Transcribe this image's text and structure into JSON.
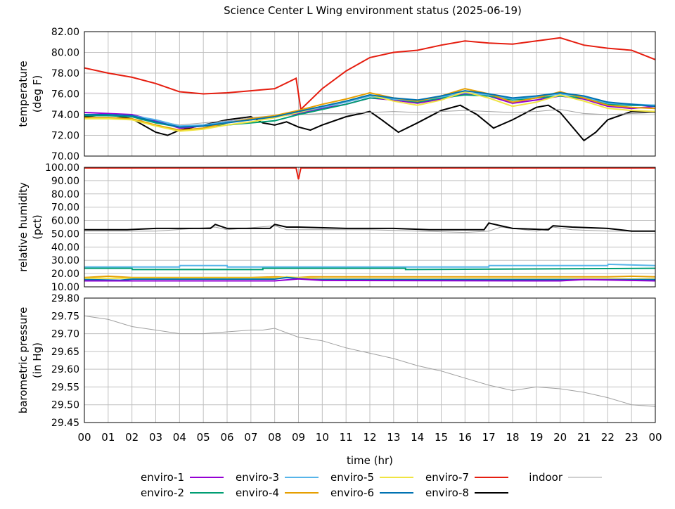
{
  "chart_data": {
    "title": "Science Center L Wing environment status (2025-06-19)",
    "xlabel": "time (hr)",
    "xlim": [
      0,
      24
    ],
    "xticks": [
      "00",
      "01",
      "02",
      "03",
      "04",
      "05",
      "06",
      "07",
      "08",
      "09",
      "10",
      "11",
      "12",
      "13",
      "14",
      "15",
      "16",
      "17",
      "18",
      "19",
      "20",
      "21",
      "22",
      "23",
      "00"
    ],
    "grid": true,
    "legend_placement": "bottom",
    "legend": [
      {
        "name": "enviro-1",
        "color": "#9400d3"
      },
      {
        "name": "enviro-2",
        "color": "#009e73"
      },
      {
        "name": "enviro-3",
        "color": "#56b4e9"
      },
      {
        "name": "enviro-4",
        "color": "#e69f00"
      },
      {
        "name": "enviro-5",
        "color": "#f0e442"
      },
      {
        "name": "enviro-6",
        "color": "#0072b2"
      },
      {
        "name": "enviro-7",
        "color": "#e51e10"
      },
      {
        "name": "enviro-8",
        "color": "#000000"
      },
      {
        "name": "indoor",
        "color": "#a0a0a0"
      }
    ],
    "panels": [
      {
        "type": "line",
        "ylabel": [
          "temperature",
          "(deg F)"
        ],
        "ylim": [
          70,
          82
        ],
        "yticks": [
          70,
          72,
          74,
          76,
          78,
          80,
          82
        ],
        "series": [
          {
            "name": "enviro-7",
            "x": [
              0,
              1,
              2,
              3,
              4,
              5,
              6,
              7,
              8,
              8.9,
              9.1,
              10,
              11,
              12,
              13,
              14,
              15,
              16,
              17,
              18,
              19,
              20,
              21,
              22,
              23,
              24
            ],
            "y": [
              78.5,
              78.0,
              77.6,
              77.0,
              76.2,
              76.0,
              76.1,
              76.3,
              76.5,
              77.5,
              74.5,
              76.5,
              78.2,
              79.5,
              80.0,
              80.2,
              80.7,
              81.1,
              80.9,
              80.8,
              81.1,
              81.4,
              80.7,
              80.4,
              80.2,
              79.3
            ]
          },
          {
            "name": "enviro-8",
            "x": [
              0,
              1,
              2,
              3,
              3.5,
              4,
              5,
              6,
              7,
              7.5,
              8,
              8.5,
              9,
              9.5,
              10,
              11,
              12,
              12.5,
              13.2,
              14,
              15,
              15.8,
              16.5,
              17.2,
              18,
              19,
              19.5,
              20,
              21,
              21.5,
              22,
              23,
              24
            ],
            "y": [
              73.8,
              74.0,
              73.6,
              72.3,
              72.0,
              72.5,
              73.0,
              73.5,
              73.8,
              73.2,
              73.0,
              73.3,
              72.8,
              72.5,
              73.0,
              73.8,
              74.3,
              73.5,
              72.3,
              73.2,
              74.4,
              74.9,
              74.0,
              72.7,
              73.5,
              74.7,
              74.9,
              74.2,
              71.5,
              72.3,
              73.5,
              74.3,
              74.2
            ]
          },
          {
            "name": "indoor",
            "x": [
              0,
              1,
              2,
              3,
              4,
              5,
              6,
              7,
              8,
              9,
              10,
              11,
              12,
              13,
              14,
              15,
              16,
              17,
              18,
              19,
              20,
              21,
              22,
              23,
              24
            ],
            "y": [
              73.6,
              73.6,
              73.5,
              73.4,
              73.0,
              73.2,
              73.4,
              73.7,
              73.9,
              74.0,
              74.1,
              74.1,
              74.2,
              74.3,
              74.2,
              74.3,
              74.4,
              74.3,
              74.2,
              74.3,
              74.5,
              74.1,
              74.0,
              74.1,
              74.2
            ]
          },
          {
            "name": "enviro-1",
            "x": [
              0,
              1,
              2,
              3,
              4,
              5,
              6,
              7,
              8,
              9,
              10,
              11,
              12,
              13,
              14,
              15,
              16,
              17,
              18,
              19,
              20,
              21,
              22,
              23,
              24
            ],
            "y": [
              74.2,
              74.1,
              74.0,
              73.4,
              72.7,
              72.9,
              73.3,
              73.5,
              73.8,
              74.1,
              74.6,
              75.0,
              75.6,
              75.4,
              75.1,
              75.5,
              76.0,
              75.8,
              75.1,
              75.4,
              75.8,
              75.5,
              74.8,
              74.6,
              74.8
            ]
          },
          {
            "name": "enviro-2",
            "x": [
              0,
              1,
              2,
              3,
              4,
              5,
              6,
              7,
              8,
              9,
              10,
              11,
              12,
              13,
              14,
              15,
              16,
              17,
              18,
              19,
              20,
              21,
              22,
              23,
              24
            ],
            "y": [
              73.9,
              73.9,
              73.8,
              73.2,
              72.8,
              72.9,
              73.0,
              73.2,
              73.4,
              74.0,
              74.5,
              75.0,
              75.6,
              75.5,
              75.2,
              75.6,
              75.9,
              75.8,
              75.4,
              75.6,
              75.8,
              75.6,
              75.0,
              74.9,
              74.9
            ]
          },
          {
            "name": "enviro-3",
            "x": [
              0,
              1,
              2,
              3,
              4,
              5,
              6,
              7,
              8,
              9,
              10,
              11,
              12,
              13,
              14,
              15,
              16,
              17,
              18,
              19,
              20,
              21,
              22,
              23,
              24
            ],
            "y": [
              74.0,
              74.0,
              73.9,
              73.5,
              72.9,
              73.0,
              73.3,
              73.5,
              73.8,
              74.2,
              74.7,
              75.2,
              75.8,
              75.5,
              75.3,
              75.7,
              76.1,
              75.9,
              75.5,
              75.7,
              76.0,
              75.7,
              75.1,
              75.0,
              74.9
            ]
          },
          {
            "name": "enviro-4",
            "x": [
              0,
              1,
              2,
              3,
              4,
              5,
              6,
              7,
              8,
              9,
              10,
              11,
              12,
              13,
              14,
              15,
              16,
              17,
              18,
              19,
              20,
              21,
              22,
              23,
              24
            ],
            "y": [
              73.7,
              73.7,
              73.6,
              73.0,
              72.5,
              72.7,
              73.2,
              73.6,
              73.9,
              74.4,
              75.0,
              75.5,
              76.1,
              75.6,
              75.3,
              75.8,
              76.5,
              76.0,
              75.2,
              75.6,
              76.2,
              75.6,
              74.9,
              74.7,
              74.6
            ]
          },
          {
            "name": "enviro-5",
            "x": [
              0,
              1,
              2,
              3,
              4,
              5,
              6,
              7,
              8,
              9,
              10,
              11,
              12,
              13,
              14,
              15,
              16,
              17,
              18,
              19,
              20,
              21,
              22,
              23,
              24
            ],
            "y": [
              73.6,
              73.6,
              73.5,
              72.9,
              72.4,
              72.6,
              73.0,
              73.3,
              73.7,
              74.2,
              74.8,
              75.3,
              75.9,
              75.3,
              74.9,
              75.4,
              76.2,
              75.6,
              74.8,
              75.2,
              75.9,
              75.3,
              74.6,
              74.4,
              74.3
            ]
          },
          {
            "name": "enviro-6",
            "x": [
              0,
              1,
              2,
              3,
              4,
              5,
              6,
              7,
              8,
              9,
              10,
              11,
              12,
              13,
              14,
              15,
              16,
              17,
              18,
              19,
              20,
              21,
              22,
              23,
              24
            ],
            "y": [
              74.0,
              74.0,
              73.9,
              73.3,
              72.8,
              72.9,
              73.2,
              73.5,
              73.8,
              74.3,
              74.8,
              75.3,
              75.9,
              75.6,
              75.4,
              75.8,
              76.3,
              76.0,
              75.6,
              75.8,
              76.1,
              75.8,
              75.2,
              75.0,
              74.8
            ]
          }
        ]
      },
      {
        "type": "line",
        "ylabel": [
          "relative humidity",
          "(pct)"
        ],
        "ylim": [
          10,
          100
        ],
        "yticks": [
          10,
          20,
          30,
          40,
          50,
          60,
          70,
          80,
          90,
          100
        ],
        "series": [
          {
            "name": "enviro-7",
            "x": [
              0,
              8.9,
              9.0,
              9.1,
              24
            ],
            "y": [
              99.5,
              99.5,
              91,
              99.5,
              99.5
            ]
          },
          {
            "name": "indoor",
            "x": [
              0,
              3,
              5.5,
              6,
              8,
              8.5,
              12,
              14,
              16,
              17,
              17.5,
              19,
              19.7,
              20.5,
              22,
              24
            ],
            "y": [
              52,
              52,
              55,
              53,
              56,
              53,
              53,
              52,
              51,
              52,
              55,
              52,
              55,
              53,
              52,
              52
            ]
          },
          {
            "name": "enviro-8",
            "x": [
              0,
              1.8,
              3,
              5.3,
              5.5,
              6,
              7.8,
              8,
              8.5,
              9,
              11,
              12,
              13,
              14.5,
              16,
              16.8,
              17,
              17.5,
              18,
              19.5,
              19.7,
              20.5,
              22,
              23,
              24
            ],
            "y": [
              53,
              53,
              54,
              54,
              57,
              54,
              54,
              57,
              55,
              55,
              54,
              54,
              54,
              53,
              53,
              53,
              58,
              56,
              54,
              53,
              56,
              55,
              54,
              52,
              52
            ]
          },
          {
            "name": "enviro-3",
            "x": [
              0,
              4,
              4.01,
              6,
              6.01,
              9,
              9.01,
              17,
              17.01,
              22,
              22.01,
              24
            ],
            "y": [
              25,
              25,
              26,
              26,
              25,
              25,
              25,
              25,
              26,
              26,
              27,
              26
            ]
          },
          {
            "name": "enviro-2",
            "x": [
              0,
              2,
              2.01,
              7.5,
              7.5,
              13.5,
              13.5,
              24
            ],
            "y": [
              24,
              24,
              23,
              23,
              24,
              24,
              23,
              24
            ]
          },
          {
            "name": "enviro-4",
            "x": [
              0,
              1,
              2,
              3,
              7,
              8,
              9,
              9.5,
              18,
              22,
              23,
              24
            ],
            "y": [
              17,
              18,
              17,
              17,
              17,
              17.5,
              17,
              17.5,
              17.5,
              17.5,
              18,
              17.5
            ]
          },
          {
            "name": "enviro-5",
            "x": [
              0,
              8,
              8.5,
              10,
              24
            ],
            "y": [
              16.5,
              16.5,
              17.5,
              16,
              16
            ]
          },
          {
            "name": "enviro-6",
            "x": [
              0,
              1.5,
              2,
              8,
              8.5,
              9.5,
              14,
              16,
              24
            ],
            "y": [
              15.5,
              15,
              15.8,
              15.8,
              17,
              15.6,
              15.5,
              15.5,
              15.5
            ]
          },
          {
            "name": "enviro-1",
            "x": [
              0,
              8,
              9,
              10,
              20,
              21,
              24
            ],
            "y": [
              14.5,
              14.5,
              16,
              14.8,
              14.5,
              15.5,
              14.5
            ]
          }
        ]
      },
      {
        "type": "line",
        "ylabel": [
          "barometric pressure",
          "(in Hg)"
        ],
        "ylim": [
          29.45,
          29.8
        ],
        "yticks": [
          29.45,
          29.5,
          29.55,
          29.6,
          29.65,
          29.7,
          29.75,
          29.8
        ],
        "series": [
          {
            "name": "indoor",
            "x": [
              0,
              1,
              2,
              3,
              4,
              5,
              6,
              7,
              7.5,
              8,
              9,
              10,
              11,
              12,
              13,
              14,
              15,
              16,
              17,
              18,
              19,
              20,
              21,
              22,
              23,
              24
            ],
            "y": [
              29.75,
              29.74,
              29.72,
              29.71,
              29.7,
              29.7,
              29.705,
              29.71,
              29.71,
              29.715,
              29.69,
              29.68,
              29.66,
              29.645,
              29.63,
              29.61,
              29.595,
              29.575,
              29.555,
              29.54,
              29.55,
              29.545,
              29.535,
              29.52,
              29.5,
              29.495
            ]
          }
        ]
      }
    ]
  }
}
